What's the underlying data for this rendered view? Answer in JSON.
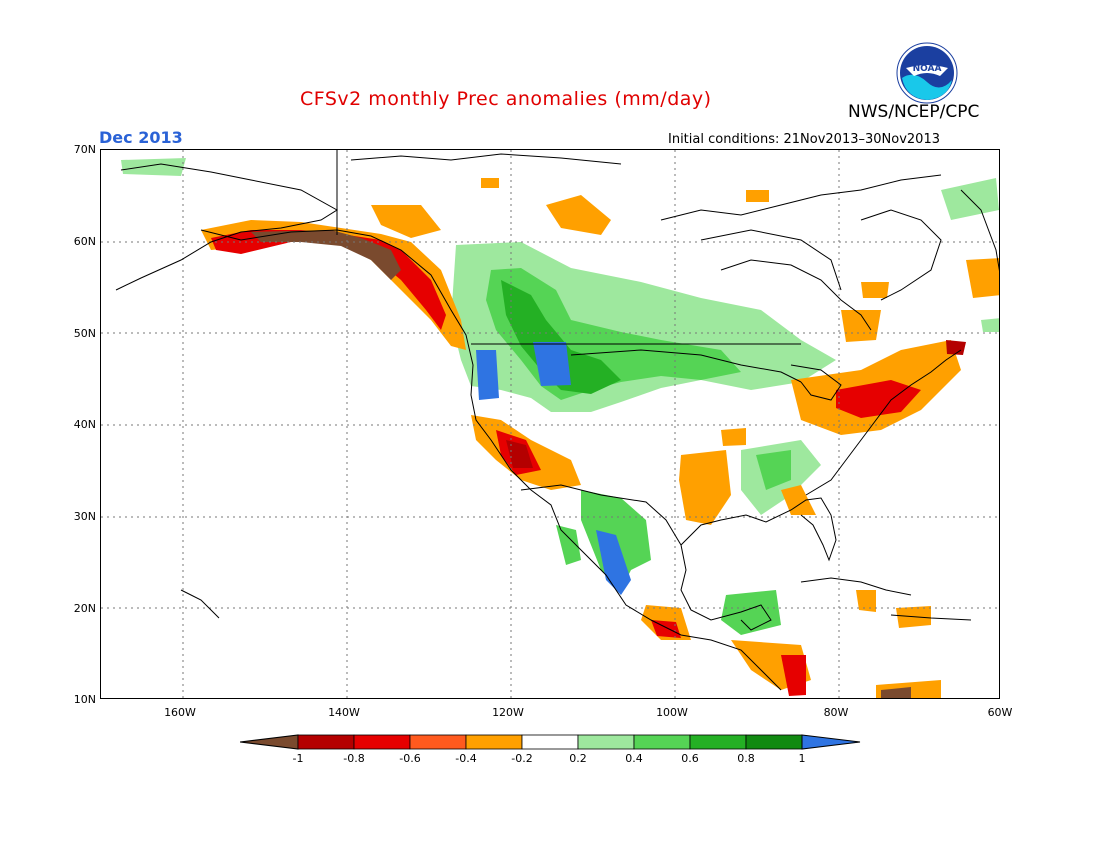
{
  "title": "CFSv2 monthly Prec anomalies (mm/day)",
  "valid_month": "Dec 2013",
  "initial_conditions": "Initial conditions: 21Nov2013–30Nov2013",
  "agency": "NWS/NCEP/CPC",
  "logo_text": "NOAA",
  "lat_labels": [
    "70N",
    "60N",
    "50N",
    "40N",
    "30N",
    "20N",
    "10N"
  ],
  "lon_labels": [
    "160W",
    "140W",
    "120W",
    "100W",
    "80W",
    "60W"
  ],
  "colorbar": {
    "labels": [
      "-1",
      "-0.8",
      "-0.6",
      "-0.4",
      "-0.2",
      "0.2",
      "0.4",
      "0.6",
      "0.8",
      "1"
    ],
    "colors": [
      "#7a4a2e",
      "#b40000",
      "#e60000",
      "#ff5a1e",
      "#ffa000",
      "#ffffff",
      "#9ee89e",
      "#55d455",
      "#24b024",
      "#118a11",
      "#2f74e2"
    ]
  }
}
